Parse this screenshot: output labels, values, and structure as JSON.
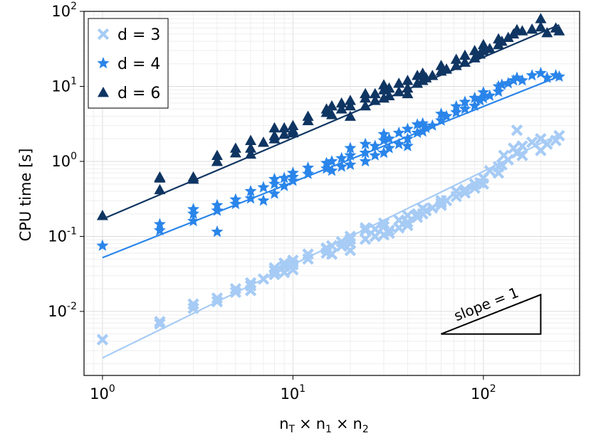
{
  "chart_data": {
    "type": "scatter",
    "xscale": "log",
    "yscale": "log",
    "xlim": [
      0.8,
      320
    ],
    "ylim": [
      0.0014,
      100
    ],
    "xticks": [
      {
        "value": 1,
        "base": "10",
        "exp": "0"
      },
      {
        "value": 10,
        "base": "10",
        "exp": "1"
      },
      {
        "value": 100,
        "base": "10",
        "exp": "2"
      }
    ],
    "yticks": [
      {
        "value": 0.01,
        "base": "10",
        "exp": "-2"
      },
      {
        "value": 0.1,
        "base": "10",
        "exp": "-1"
      },
      {
        "value": 1,
        "base": "10",
        "exp": "0"
      },
      {
        "value": 10,
        "base": "10",
        "exp": "1"
      },
      {
        "value": 100,
        "base": "10",
        "exp": "2"
      }
    ],
    "xlabel": {
      "n": "n",
      "sub_t": "T",
      "times": "×",
      "sub_1": "1",
      "sub_2": "2"
    },
    "ylabel": "CPU  time [s]",
    "grid": true,
    "legend_position": "top-left",
    "series": [
      {
        "name": "d = 3",
        "marker": "cross",
        "color": "#a6cbf5",
        "points": [
          [
            1,
            0.0042
          ],
          [
            2,
            0.0068
          ],
          [
            2,
            0.0073
          ],
          [
            3,
            0.011
          ],
          [
            3,
            0.0125
          ],
          [
            4,
            0.0135
          ],
          [
            4,
            0.015
          ],
          [
            5,
            0.018
          ],
          [
            5,
            0.02
          ],
          [
            6,
            0.019
          ],
          [
            6,
            0.022
          ],
          [
            6,
            0.024
          ],
          [
            7,
            0.027
          ],
          [
            8,
            0.031
          ],
          [
            8,
            0.035
          ],
          [
            8,
            0.038
          ],
          [
            9,
            0.033
          ],
          [
            9,
            0.04
          ],
          [
            9,
            0.044
          ],
          [
            10,
            0.036
          ],
          [
            10,
            0.042
          ],
          [
            10,
            0.048
          ],
          [
            12,
            0.05
          ],
          [
            12,
            0.058
          ],
          [
            15,
            0.06
          ],
          [
            15,
            0.07
          ],
          [
            15,
            0.068
          ],
          [
            16,
            0.058
          ],
          [
            16,
            0.075
          ],
          [
            18,
            0.074
          ],
          [
            18,
            0.085
          ],
          [
            20,
            0.08
          ],
          [
            20,
            0.092
          ],
          [
            20,
            0.1
          ],
          [
            20,
            0.065
          ],
          [
            24,
            0.092
          ],
          [
            24,
            0.12
          ],
          [
            24,
            0.13
          ],
          [
            27,
            0.1
          ],
          [
            27,
            0.125
          ],
          [
            30,
            0.105
          ],
          [
            30,
            0.135
          ],
          [
            30,
            0.15
          ],
          [
            32,
            0.11
          ],
          [
            32,
            0.12
          ],
          [
            36,
            0.13
          ],
          [
            36,
            0.165
          ],
          [
            40,
            0.155
          ],
          [
            40,
            0.19
          ],
          [
            40,
            0.14
          ],
          [
            45,
            0.18
          ],
          [
            45,
            0.2
          ],
          [
            48,
            0.2
          ],
          [
            48,
            0.235
          ],
          [
            50,
            0.22
          ],
          [
            54,
            0.24
          ],
          [
            60,
            0.28
          ],
          [
            60,
            0.3
          ],
          [
            60,
            0.26
          ],
          [
            64,
            0.3
          ],
          [
            72,
            0.34
          ],
          [
            72,
            0.4
          ],
          [
            80,
            0.38
          ],
          [
            80,
            0.42
          ],
          [
            90,
            0.44
          ],
          [
            90,
            0.5
          ],
          [
            96,
            0.52
          ],
          [
            100,
            0.5
          ],
          [
            100,
            0.6
          ],
          [
            108,
            0.75
          ],
          [
            120,
            0.7
          ],
          [
            120,
            0.85
          ],
          [
            125,
            0.9
          ],
          [
            128,
            1.2
          ],
          [
            135,
            1.05
          ],
          [
            144,
            1.5
          ],
          [
            150,
            2.6
          ],
          [
            150,
            1.3
          ],
          [
            160,
            1.2
          ],
          [
            160,
            1.6
          ],
          [
            180,
            1.8
          ],
          [
            200,
            2.0
          ],
          [
            200,
            1.4
          ],
          [
            216,
            1.7
          ],
          [
            240,
            1.9
          ],
          [
            250,
            2.2
          ]
        ],
        "fit": [
          [
            1,
            0.0024
          ],
          [
            250,
            2.3
          ]
        ]
      },
      {
        "name": "d = 4",
        "marker": "star",
        "color": "#2a85ea",
        "points": [
          [
            1,
            0.075
          ],
          [
            2,
            0.12
          ],
          [
            2,
            0.145
          ],
          [
            3,
            0.16
          ],
          [
            3,
            0.2
          ],
          [
            3,
            0.23
          ],
          [
            4,
            0.115
          ],
          [
            4,
            0.22
          ],
          [
            4,
            0.26
          ],
          [
            5,
            0.27
          ],
          [
            5,
            0.31
          ],
          [
            6,
            0.32
          ],
          [
            6,
            0.4
          ],
          [
            7,
            0.3
          ],
          [
            7,
            0.45
          ],
          [
            8,
            0.37
          ],
          [
            8,
            0.5
          ],
          [
            8,
            0.58
          ],
          [
            9,
            0.47
          ],
          [
            9,
            0.6
          ],
          [
            10,
            0.55
          ],
          [
            10,
            0.7
          ],
          [
            10,
            0.62
          ],
          [
            12,
            0.68
          ],
          [
            12,
            0.82
          ],
          [
            15,
            0.8
          ],
          [
            15,
            0.95
          ],
          [
            16,
            0.75
          ],
          [
            16,
            1.0
          ],
          [
            18,
            0.85
          ],
          [
            18,
            1.1
          ],
          [
            20,
            0.9
          ],
          [
            20,
            1.2
          ],
          [
            20,
            1.5
          ],
          [
            24,
            1.0
          ],
          [
            24,
            1.3
          ],
          [
            24,
            1.7
          ],
          [
            27,
            1.2
          ],
          [
            27,
            1.6
          ],
          [
            30,
            1.3
          ],
          [
            30,
            1.9
          ],
          [
            30,
            2.3
          ],
          [
            32,
            1.5
          ],
          [
            32,
            2.0
          ],
          [
            36,
            1.7
          ],
          [
            36,
            2.4
          ],
          [
            40,
            2.0
          ],
          [
            40,
            2.7
          ],
          [
            40,
            1.6
          ],
          [
            45,
            2.4
          ],
          [
            45,
            3.1
          ],
          [
            48,
            2.5
          ],
          [
            48,
            3.2
          ],
          [
            50,
            2.8
          ],
          [
            54,
            3.0
          ],
          [
            60,
            3.5
          ],
          [
            60,
            4.3
          ],
          [
            64,
            4.0
          ],
          [
            72,
            4.5
          ],
          [
            72,
            5.4
          ],
          [
            80,
            5.0
          ],
          [
            80,
            6.2
          ],
          [
            90,
            5.5
          ],
          [
            90,
            7.0
          ],
          [
            96,
            6.5
          ],
          [
            100,
            7.0
          ],
          [
            100,
            8.3
          ],
          [
            108,
            7.5
          ],
          [
            120,
            8.5
          ],
          [
            120,
            10.0
          ],
          [
            125,
            10.5
          ],
          [
            135,
            11
          ],
          [
            144,
            12
          ],
          [
            150,
            13
          ],
          [
            160,
            12
          ],
          [
            180,
            14
          ],
          [
            200,
            15
          ],
          [
            216,
            13
          ],
          [
            240,
            14
          ],
          [
            250,
            13.5
          ]
        ],
        "fit": [
          [
            1,
            0.052
          ],
          [
            250,
            13.6
          ]
        ]
      },
      {
        "name": "d = 6",
        "marker": "triangle",
        "color": "#0f3562",
        "points": [
          [
            1,
            0.19
          ],
          [
            2,
            0.42
          ],
          [
            2,
            0.6
          ],
          [
            2,
            0.62
          ],
          [
            3,
            0.58
          ],
          [
            3,
            0.62
          ],
          [
            4,
            1.0
          ],
          [
            4,
            1.2
          ],
          [
            4,
            1.0
          ],
          [
            5,
            1.3
          ],
          [
            5,
            1.5
          ],
          [
            6,
            1.25
          ],
          [
            6,
            1.5
          ],
          [
            6,
            1.9
          ],
          [
            7,
            1.8
          ],
          [
            8,
            2.0
          ],
          [
            8,
            2.8
          ],
          [
            8,
            2.2
          ],
          [
            9,
            2.3
          ],
          [
            9,
            2.8
          ],
          [
            10,
            2.4
          ],
          [
            10,
            3.0
          ],
          [
            10,
            2.6
          ],
          [
            12,
            3.5
          ],
          [
            12,
            4.0
          ],
          [
            15,
            4.5
          ],
          [
            15,
            5.0
          ],
          [
            16,
            4.2
          ],
          [
            16,
            5.5
          ],
          [
            18,
            5.0
          ],
          [
            18,
            6.0
          ],
          [
            20,
            4.0
          ],
          [
            20,
            5.5
          ],
          [
            20,
            6.5
          ],
          [
            24,
            5.5
          ],
          [
            24,
            7.0
          ],
          [
            24,
            8.0
          ],
          [
            27,
            6.5
          ],
          [
            27,
            8.0
          ],
          [
            30,
            7.0
          ],
          [
            30,
            9.0
          ],
          [
            30,
            10.5
          ],
          [
            32,
            7.5
          ],
          [
            32,
            9.5
          ],
          [
            36,
            8.5
          ],
          [
            36,
            11
          ],
          [
            40,
            9.5
          ],
          [
            40,
            12
          ],
          [
            40,
            8.0
          ],
          [
            45,
            11
          ],
          [
            45,
            14
          ],
          [
            48,
            12
          ],
          [
            48,
            15
          ],
          [
            50,
            13
          ],
          [
            54,
            14
          ],
          [
            60,
            16
          ],
          [
            60,
            19
          ],
          [
            64,
            17
          ],
          [
            72,
            19
          ],
          [
            72,
            23
          ],
          [
            80,
            21
          ],
          [
            80,
            26
          ],
          [
            90,
            24
          ],
          [
            90,
            30
          ],
          [
            96,
            27
          ],
          [
            100,
            30
          ],
          [
            100,
            36
          ],
          [
            108,
            32
          ],
          [
            120,
            36
          ],
          [
            120,
            43
          ],
          [
            125,
            40
          ],
          [
            135,
            45
          ],
          [
            144,
            50
          ],
          [
            150,
            57
          ],
          [
            160,
            55
          ],
          [
            180,
            58
          ],
          [
            200,
            80
          ],
          [
            200,
            62
          ],
          [
            216,
            52
          ],
          [
            240,
            60
          ],
          [
            250,
            55
          ]
        ],
        "fit": [
          [
            1,
            0.17
          ],
          [
            250,
            66
          ]
        ]
      }
    ],
    "annotation": {
      "label": "slope = 1",
      "triangle": [
        [
          60,
          0.005
        ],
        [
          200,
          0.005
        ],
        [
          200,
          0.0167
        ]
      ]
    }
  }
}
